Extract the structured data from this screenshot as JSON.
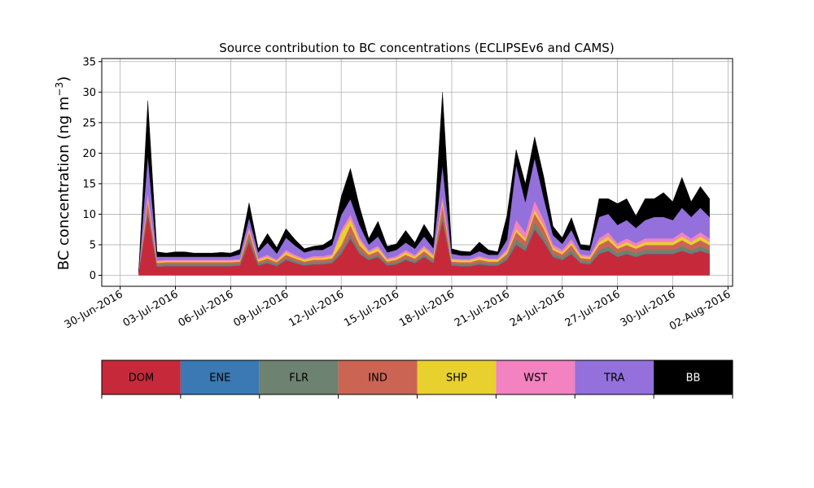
{
  "chart_data": {
    "type": "area",
    "stacked": true,
    "title": "Source contribution to BC concentrations (ECLIPSEv6 and CAMS)",
    "xlabel": "",
    "ylabel": "BC concentration (ng m",
    "ylabel_sup": "−3",
    "ylabel_close": ")",
    "ylim": [
      -1.8,
      35.5
    ],
    "xlim": [
      "2016-06-29",
      "2016-08-02"
    ],
    "grid": true,
    "y_ticks": [
      0,
      5,
      10,
      15,
      20,
      25,
      30,
      35
    ],
    "y_tick_labels": [
      "0",
      "5",
      "10",
      "15",
      "20",
      "25",
      "30",
      "35"
    ],
    "x_ticks": [
      "2016-06-30",
      "2016-07-03",
      "2016-07-06",
      "2016-07-09",
      "2016-07-12",
      "2016-07-15",
      "2016-07-18",
      "2016-07-21",
      "2016-07-24",
      "2016-07-27",
      "2016-07-30",
      "2016-08-02"
    ],
    "x_tick_labels": [
      "30-Jun-2016",
      "03-Jul-2016",
      "06-Jul-2016",
      "09-Jul-2016",
      "12-Jul-2016",
      "15-Jul-2016",
      "18-Jul-2016",
      "21-Jul-2016",
      "24-Jul-2016",
      "27-Jul-2016",
      "30-Jul-2016",
      "02-Aug-2016"
    ],
    "x": [
      "2016-07-01",
      "2016-07-01 12:00",
      "2016-07-02",
      "2016-07-02 12:00",
      "2016-07-03",
      "2016-07-03 12:00",
      "2016-07-04",
      "2016-07-04 12:00",
      "2016-07-05",
      "2016-07-05 12:00",
      "2016-07-06",
      "2016-07-06 12:00",
      "2016-07-07",
      "2016-07-07 12:00",
      "2016-07-08",
      "2016-07-08 12:00",
      "2016-07-09",
      "2016-07-09 12:00",
      "2016-07-10",
      "2016-07-10 12:00",
      "2016-07-11",
      "2016-07-11 12:00",
      "2016-07-12",
      "2016-07-12 12:00",
      "2016-07-13",
      "2016-07-13 12:00",
      "2016-07-14",
      "2016-07-14 12:00",
      "2016-07-15",
      "2016-07-15 12:00",
      "2016-07-16",
      "2016-07-16 12:00",
      "2016-07-17",
      "2016-07-17 12:00",
      "2016-07-18",
      "2016-07-18 12:00",
      "2016-07-19",
      "2016-07-19 12:00",
      "2016-07-20",
      "2016-07-20 12:00",
      "2016-07-21",
      "2016-07-21 12:00",
      "2016-07-22",
      "2016-07-22 12:00",
      "2016-07-23",
      "2016-07-23 12:00",
      "2016-07-24",
      "2016-07-24 12:00",
      "2016-07-25",
      "2016-07-25 12:00",
      "2016-07-26",
      "2016-07-26 12:00",
      "2016-07-27",
      "2016-07-27 12:00",
      "2016-07-28",
      "2016-07-28 12:00",
      "2016-07-29",
      "2016-07-29 12:00",
      "2016-07-30",
      "2016-07-30 12:00",
      "2016-07-31",
      "2016-07-31 12:00",
      "2016-08-01"
    ],
    "series": [
      {
        "name": "DOM",
        "color": "#c62a3a",
        "values": [
          0.5,
          10.0,
          1.4,
          1.5,
          1.5,
          1.5,
          1.5,
          1.5,
          1.5,
          1.5,
          1.5,
          1.6,
          5.5,
          1.6,
          2.0,
          1.5,
          2.5,
          2.0,
          1.6,
          1.8,
          1.8,
          2.0,
          3.5,
          6.0,
          3.5,
          2.5,
          3.0,
          1.6,
          1.8,
          2.5,
          2.0,
          3.0,
          2.0,
          9.0,
          1.6,
          1.5,
          1.5,
          1.8,
          1.6,
          1.6,
          2.5,
          5.0,
          4.0,
          7.5,
          5.5,
          3.0,
          2.5,
          3.5,
          2.0,
          1.8,
          3.5,
          4.0,
          3.0,
          3.5,
          3.0,
          3.5,
          3.5,
          3.5,
          3.5,
          4.0,
          3.5,
          4.0,
          3.5
        ]
      },
      {
        "name": "ENE",
        "color": "#3a79b3",
        "values": [
          0,
          0.1,
          0.05,
          0.05,
          0.05,
          0.05,
          0.05,
          0.05,
          0.05,
          0.05,
          0.05,
          0.05,
          0.1,
          0.05,
          0.05,
          0.05,
          0.05,
          0.05,
          0.05,
          0.05,
          0.05,
          0.05,
          0.1,
          0.1,
          0.1,
          0.05,
          0.05,
          0.05,
          0.05,
          0.05,
          0.05,
          0.05,
          0.05,
          0.1,
          0.05,
          0.05,
          0.05,
          0.05,
          0.05,
          0.05,
          0.1,
          0.1,
          0.1,
          0.1,
          0.1,
          0.05,
          0.05,
          0.05,
          0.05,
          0.05,
          0.05,
          0.05,
          0.05,
          0.05,
          0.05,
          0.05,
          0.05,
          0.05,
          0.05,
          0.05,
          0.05,
          0.05,
          0.05
        ]
      },
      {
        "name": "FLR",
        "color": "#6d8270",
        "values": [
          0,
          0.5,
          0.3,
          0.3,
          0.3,
          0.3,
          0.3,
          0.3,
          0.3,
          0.3,
          0.3,
          0.3,
          0.5,
          0.3,
          0.3,
          0.3,
          0.3,
          0.3,
          0.3,
          0.3,
          0.3,
          0.3,
          0.5,
          0.6,
          0.5,
          0.3,
          0.3,
          0.3,
          0.3,
          0.3,
          0.3,
          0.3,
          0.3,
          0.6,
          0.3,
          0.3,
          0.3,
          0.3,
          0.3,
          0.3,
          0.4,
          0.8,
          0.6,
          1.0,
          0.8,
          0.5,
          0.4,
          0.6,
          0.4,
          0.4,
          0.6,
          0.7,
          0.6,
          0.6,
          0.6,
          0.6,
          0.6,
          0.6,
          0.6,
          0.7,
          0.6,
          0.7,
          0.6
        ]
      },
      {
        "name": "IND",
        "color": "#cc6454",
        "values": [
          0,
          1.5,
          0.3,
          0.3,
          0.3,
          0.3,
          0.3,
          0.3,
          0.3,
          0.3,
          0.3,
          0.3,
          1.0,
          0.3,
          0.4,
          0.3,
          0.5,
          0.4,
          0.3,
          0.4,
          0.4,
          0.4,
          0.8,
          1.5,
          0.8,
          0.5,
          0.6,
          0.3,
          0.4,
          0.5,
          0.4,
          0.6,
          0.4,
          1.8,
          0.3,
          0.3,
          0.3,
          0.4,
          0.3,
          0.3,
          0.5,
          1.2,
          0.9,
          1.5,
          1.2,
          0.6,
          0.5,
          0.8,
          0.4,
          0.4,
          0.8,
          1.0,
          0.7,
          0.8,
          0.7,
          0.8,
          0.8,
          0.8,
          0.8,
          1.0,
          0.8,
          1.0,
          0.8
        ]
      },
      {
        "name": "SHP",
        "color": "#e8d02e",
        "values": [
          0,
          0.5,
          0.2,
          0.2,
          0.2,
          0.2,
          0.2,
          0.2,
          0.2,
          0.2,
          0.2,
          0.2,
          0.3,
          0.3,
          0.3,
          0.2,
          0.4,
          0.3,
          0.3,
          0.3,
          0.3,
          0.4,
          2.0,
          1.0,
          0.8,
          0.4,
          0.5,
          0.3,
          0.3,
          0.4,
          0.3,
          0.5,
          0.4,
          0.5,
          0.3,
          0.3,
          0.3,
          0.3,
          0.3,
          0.3,
          0.4,
          0.5,
          0.4,
          0.6,
          0.5,
          0.4,
          0.3,
          0.4,
          0.3,
          0.3,
          0.5,
          0.6,
          0.4,
          0.5,
          0.4,
          0.5,
          0.5,
          0.5,
          0.5,
          0.6,
          0.5,
          0.6,
          0.5
        ]
      },
      {
        "name": "WST",
        "color": "#f282c0",
        "values": [
          0,
          1.0,
          0.2,
          0.2,
          0.2,
          0.2,
          0.2,
          0.2,
          0.2,
          0.2,
          0.2,
          0.2,
          0.5,
          0.2,
          0.3,
          0.2,
          0.4,
          0.3,
          0.2,
          0.3,
          0.3,
          0.3,
          0.5,
          0.8,
          0.5,
          0.3,
          0.4,
          0.2,
          0.3,
          0.4,
          0.3,
          0.4,
          0.3,
          1.0,
          0.2,
          0.2,
          0.2,
          0.3,
          0.2,
          0.2,
          0.4,
          1.5,
          1.0,
          1.5,
          1.0,
          0.5,
          0.4,
          0.6,
          0.3,
          0.3,
          0.6,
          0.7,
          0.5,
          0.6,
          0.5,
          0.6,
          0.6,
          0.6,
          0.6,
          0.7,
          0.6,
          0.7,
          0.6
        ]
      },
      {
        "name": "TRA",
        "color": "#9370db",
        "values": [
          0,
          6.0,
          0.6,
          0.5,
          0.5,
          0.5,
          0.5,
          0.5,
          0.5,
          0.5,
          0.5,
          0.8,
          1.5,
          1.0,
          2.0,
          1.0,
          2.0,
          1.5,
          1.0,
          1.0,
          1.0,
          1.5,
          2.5,
          2.5,
          2.0,
          1.0,
          1.5,
          1.0,
          1.0,
          1.2,
          1.0,
          1.5,
          1.0,
          5.0,
          0.8,
          0.6,
          0.6,
          0.8,
          0.6,
          0.6,
          1.5,
          9.0,
          5.0,
          7.0,
          3.5,
          1.5,
          1.0,
          1.5,
          0.8,
          0.8,
          3.5,
          3.0,
          3.0,
          3.0,
          2.5,
          3.0,
          3.5,
          3.5,
          3.0,
          4.0,
          3.5,
          4.0,
          3.5
        ]
      },
      {
        "name": "BB",
        "color": "#000000",
        "values": [
          0,
          9.0,
          0.8,
          0.6,
          0.8,
          0.8,
          0.6,
          0.6,
          0.6,
          0.7,
          0.6,
          0.8,
          2.5,
          0.6,
          1.5,
          1.0,
          1.5,
          1.0,
          0.6,
          0.6,
          0.8,
          1.0,
          3.0,
          5.0,
          3.0,
          1.0,
          2.5,
          1.0,
          1.0,
          2.0,
          1.0,
          2.0,
          1.5,
          12.0,
          0.8,
          0.7,
          0.6,
          1.5,
          0.8,
          0.5,
          4.0,
          2.5,
          3.0,
          3.5,
          3.5,
          1.5,
          1.0,
          2.0,
          0.8,
          0.8,
          3.0,
          2.5,
          3.5,
          3.5,
          2.0,
          3.5,
          3.0,
          4.0,
          3.0,
          5.0,
          2.5,
          3.5,
          3.0
        ]
      }
    ],
    "legend_placement": "bottom"
  }
}
